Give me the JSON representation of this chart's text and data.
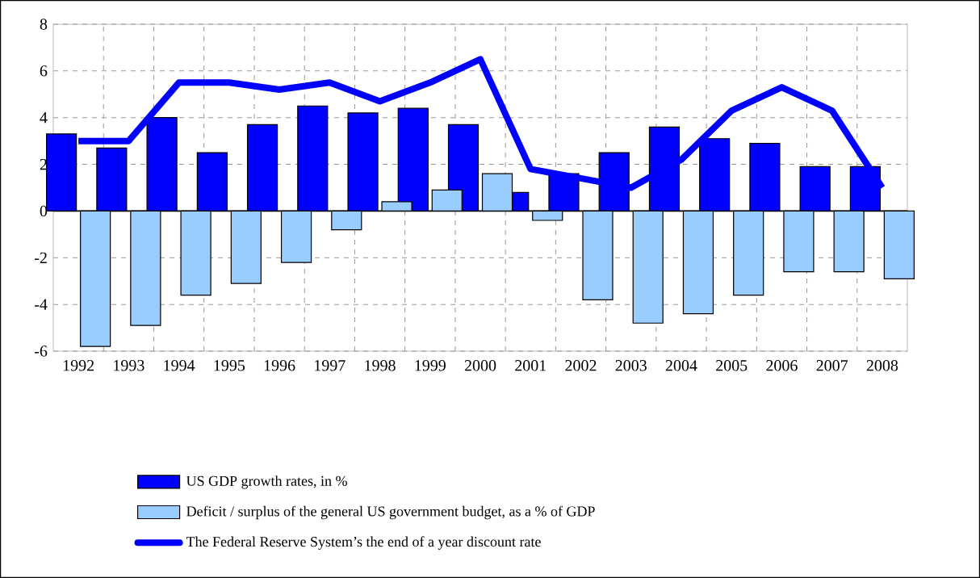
{
  "chart_data": {
    "type": "bar",
    "categories": [
      "1992",
      "1993",
      "1994",
      "1995",
      "1996",
      "1997",
      "1998",
      "1999",
      "2000",
      "2001",
      "2002",
      "2003",
      "2004",
      "2005",
      "2006",
      "2007",
      "2008"
    ],
    "series": [
      {
        "name": "US GDP growth rates, in %",
        "color": "#0000ff",
        "values": [
          3.3,
          2.7,
          4.0,
          2.5,
          3.7,
          4.5,
          4.2,
          4.4,
          3.7,
          0.8,
          1.6,
          2.5,
          3.6,
          3.1,
          2.9,
          1.9,
          1.9
        ]
      },
      {
        "name": "Deficit / surplus of the general US government budget, as a % of GDP",
        "color": "#99ccff",
        "values": [
          -5.8,
          -4.9,
          -3.6,
          -3.1,
          -2.2,
          -0.8,
          0.4,
          0.9,
          1.6,
          -0.4,
          -3.8,
          -4.8,
          -4.4,
          -3.6,
          -2.6,
          -2.6,
          -2.9
        ]
      },
      {
        "name": "The Federal Reserve System’s the end of a year discount rate",
        "type": "line",
        "color": "#0000ff",
        "values": [
          3.0,
          3.0,
          5.5,
          5.5,
          5.2,
          5.5,
          4.7,
          5.5,
          6.5,
          1.8,
          1.4,
          1.0,
          2.2,
          4.3,
          5.3,
          4.3,
          1.0
        ]
      }
    ],
    "ylim": [
      -6,
      8
    ],
    "yticks": [
      -6,
      -4,
      -2,
      0,
      2,
      4,
      6,
      8
    ],
    "grid": true,
    "legend": "bottom"
  }
}
